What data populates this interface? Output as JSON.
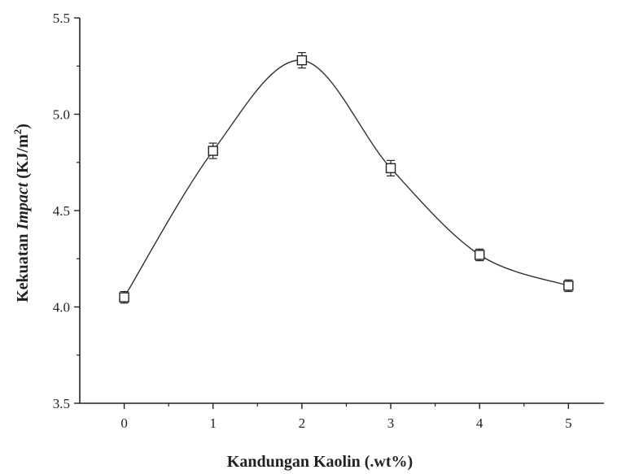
{
  "chart_data": {
    "type": "scatter",
    "xlabel": "Kandungan Kaolin (.wt%)",
    "ylabel": {
      "prefix": "Kekuatan ",
      "italic": "Impact",
      "suffix_pre": " (KJ/m",
      "superscript": "2",
      "suffix_post": ")"
    },
    "x_ticks": [
      "0",
      "1",
      "2",
      "3",
      "4",
      "5"
    ],
    "y_ticks": [
      "3.5",
      "4.0",
      "4.5",
      "5.0",
      "5.5"
    ],
    "xlim": [
      -0.5,
      5.4
    ],
    "ylim": [
      3.5,
      5.5
    ],
    "grid": false,
    "legend": "none",
    "series": [
      {
        "x": [
          0,
          1,
          2,
          3,
          4,
          5
        ],
        "y": [
          4.05,
          4.81,
          5.28,
          4.72,
          4.27,
          4.11
        ],
        "error": [
          0.03,
          0.04,
          0.04,
          0.04,
          0.03,
          0.03
        ],
        "marker": "open-square",
        "smooth_fit": true
      }
    ]
  }
}
